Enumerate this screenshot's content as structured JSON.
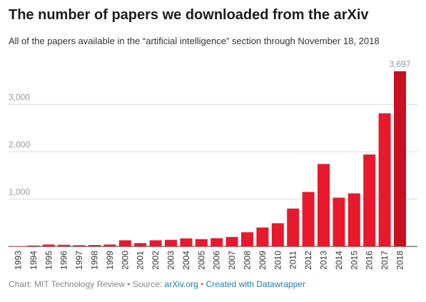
{
  "title": "The number of papers we downloaded from the arXiv",
  "subtitle": "All of the papers available in the “artificial intelligence” section through November 18, 2018",
  "footer": {
    "chart_by": "Chart: MIT Technology Review",
    "separator": " • ",
    "source_label": "Source: ",
    "source_link": "arXiv.org",
    "created_with": "Created with Datawrapper"
  },
  "colors": {
    "bar": "#e8192c",
    "bar_highlight": "#c8101f",
    "grid": "#dddddd",
    "axis": "#333333",
    "tick_text": "#999999"
  },
  "chart_data": {
    "type": "bar",
    "title": "The number of papers we downloaded from the arXiv",
    "subtitle": "All of the papers available in the “artificial intelligence” section through November 18, 2018",
    "xlabel": "",
    "ylabel": "",
    "ylim": [
      0,
      3800
    ],
    "yticks": [
      1000,
      2000,
      3000
    ],
    "ytick_labels": [
      "1,000",
      "2,000",
      "3,000"
    ],
    "grid": true,
    "categories": [
      "1993",
      "1994",
      "1995",
      "1996",
      "1997",
      "1998",
      "1999",
      "2000",
      "2001",
      "2002",
      "2003",
      "2004",
      "2005",
      "2006",
      "2007",
      "2008",
      "2009",
      "2010",
      "2011",
      "2012",
      "2013",
      "2014",
      "2015",
      "2016",
      "2017",
      "2018"
    ],
    "values": [
      5,
      20,
      40,
      35,
      25,
      30,
      40,
      130,
      70,
      130,
      140,
      170,
      155,
      175,
      200,
      300,
      400,
      490,
      800,
      1150,
      1740,
      1030,
      1120,
      1940,
      2810,
      3697
    ],
    "data_labels": [
      {
        "category": "2018",
        "label": "3,697"
      }
    ]
  }
}
